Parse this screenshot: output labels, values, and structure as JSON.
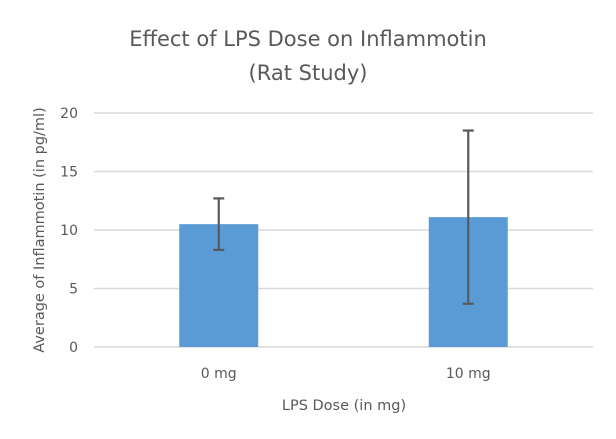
{
  "chart_data": {
    "type": "bar",
    "title": "Effect of LPS Dose on Inflammotin (Rat Study)",
    "title_lines": [
      "Effect of LPS Dose on Inflammotin",
      "(Rat Study)"
    ],
    "xlabel": "LPS Dose (in mg)",
    "ylabel": "Average of Inflammotin (in pg/ml)",
    "categories": [
      "0 mg",
      "10 mg"
    ],
    "values": [
      10.5,
      11.1
    ],
    "error_bars": {
      "plus": [
        2.2,
        7.4
      ],
      "minus": [
        2.2,
        7.4
      ]
    },
    "ylim": [
      0,
      20
    ],
    "yticks": [
      0,
      5,
      10,
      15,
      20
    ],
    "ytick_labels": [
      "0",
      "5",
      "10",
      "15",
      "20"
    ],
    "grid": true,
    "legend": null,
    "colors": {
      "bar": "#5b9bd5",
      "error_bar": "#595959",
      "grid": "#d9d9d9",
      "text": "#595959"
    }
  }
}
